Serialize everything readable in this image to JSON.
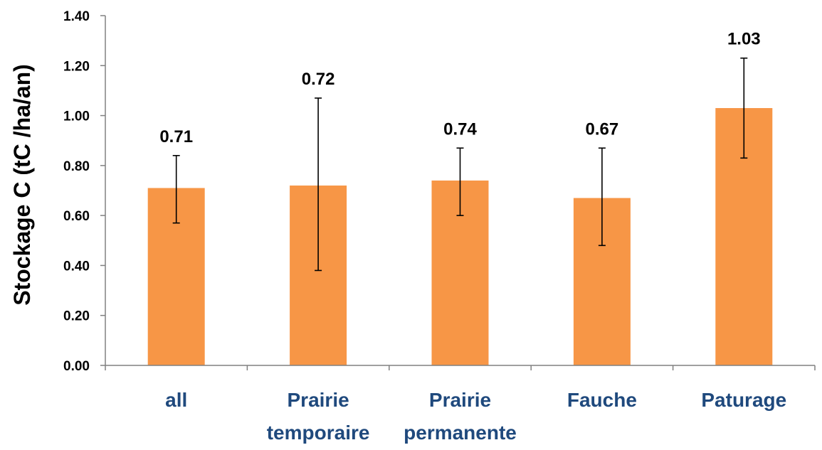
{
  "chart_data": {
    "type": "bar",
    "title": "",
    "xlabel": "",
    "ylabel": "Stockage C (tC /ha/an)",
    "categories": [
      [
        "all"
      ],
      [
        "Prairie",
        "temporaire"
      ],
      [
        "Prairie",
        "permanente"
      ],
      [
        "Fauche"
      ],
      [
        "Paturage"
      ]
    ],
    "values": [
      0.71,
      0.72,
      0.74,
      0.67,
      1.03
    ],
    "value_labels": [
      "0.71",
      "0.72",
      "0.74",
      "0.67",
      "1.03"
    ],
    "error_bars": [
      {
        "low": 0.57,
        "high": 0.84
      },
      {
        "low": 0.38,
        "high": 1.07
      },
      {
        "low": 0.6,
        "high": 0.87
      },
      {
        "low": 0.48,
        "high": 0.87
      },
      {
        "low": 0.83,
        "high": 1.23
      }
    ],
    "ylim": [
      0,
      1.4
    ],
    "yticks": [
      "0.00",
      "0.20",
      "0.40",
      "0.60",
      "0.80",
      "1.00",
      "1.20",
      "1.40"
    ],
    "grid": false,
    "legend": "none",
    "colors": {
      "bar": "#F79646",
      "category_label": "#1F497D",
      "axis": "#808080",
      "text": "#000000"
    }
  }
}
